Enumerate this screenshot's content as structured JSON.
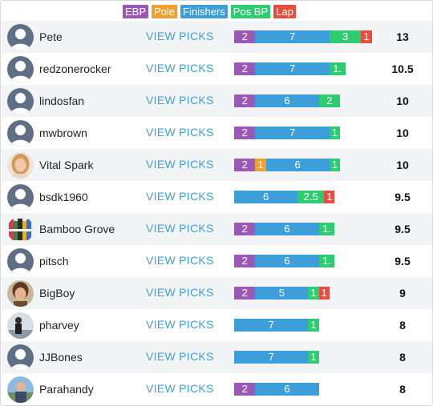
{
  "legend": [
    {
      "label": "EBP",
      "color": "#9b59b6"
    },
    {
      "label": "Pole",
      "color": "#f0a030"
    },
    {
      "label": "Finishers",
      "color": "#3d9ed9"
    },
    {
      "label": "Pos BP",
      "color": "#2ecc71"
    },
    {
      "label": "Lap",
      "color": "#e74c3c"
    }
  ],
  "view_picks_label": "VIEW PICKS",
  "rows": [
    {
      "user": "Pete",
      "avatar": "default-user-icon",
      "score": "13",
      "segments": [
        {
          "type": "ebp",
          "label": "2",
          "value": 2
        },
        {
          "type": "finishers",
          "label": "7",
          "value": 7
        },
        {
          "type": "posbp",
          "label": "3",
          "value": 3
        },
        {
          "type": "lap",
          "label": "1",
          "value": 1
        }
      ]
    },
    {
      "user": "redzonerocker",
      "avatar": "default-user-icon",
      "score": "10.5",
      "segments": [
        {
          "type": "ebp",
          "label": "2",
          "value": 2
        },
        {
          "type": "finishers",
          "label": "7",
          "value": 7
        },
        {
          "type": "posbp",
          "label": "1.",
          "value": 1.5
        }
      ]
    },
    {
      "user": "lindosfan",
      "avatar": "default-user-icon",
      "score": "10",
      "segments": [
        {
          "type": "ebp",
          "label": "2",
          "value": 2
        },
        {
          "type": "finishers",
          "label": "6",
          "value": 6
        },
        {
          "type": "posbp",
          "label": "2",
          "value": 2
        }
      ]
    },
    {
      "user": "mwbrown",
      "avatar": "default-user-icon",
      "score": "10",
      "segments": [
        {
          "type": "ebp",
          "label": "2",
          "value": 2
        },
        {
          "type": "finishers",
          "label": "7",
          "value": 7
        },
        {
          "type": "posbp",
          "label": "1",
          "value": 1
        }
      ]
    },
    {
      "user": "Vital Spark",
      "avatar": "woman-photo-avatar",
      "score": "10",
      "segments": [
        {
          "type": "ebp",
          "label": "2",
          "value": 2
        },
        {
          "type": "pole",
          "label": "1",
          "value": 1
        },
        {
          "type": "finishers",
          "label": "6",
          "value": 6
        },
        {
          "type": "posbp",
          "label": "1",
          "value": 1
        }
      ]
    },
    {
      "user": "bsdk1960",
      "avatar": "default-user-icon",
      "score": "9.5",
      "segments": [
        {
          "type": "finishers",
          "label": "6",
          "value": 6
        },
        {
          "type": "posbp",
          "label": "2.5",
          "value": 2.5
        },
        {
          "type": "lap",
          "label": "1",
          "value": 1
        }
      ]
    },
    {
      "user": "Bamboo Grove",
      "avatar": "colorful-pattern-avatar",
      "score": "9.5",
      "segments": [
        {
          "type": "ebp",
          "label": "2",
          "value": 2
        },
        {
          "type": "finishers",
          "label": "6",
          "value": 6
        },
        {
          "type": "posbp",
          "label": "1.",
          "value": 1.5
        }
      ]
    },
    {
      "user": "pitsch",
      "avatar": "default-user-icon",
      "score": "9.5",
      "segments": [
        {
          "type": "ebp",
          "label": "2",
          "value": 2
        },
        {
          "type": "finishers",
          "label": "6",
          "value": 6
        },
        {
          "type": "posbp",
          "label": "1.",
          "value": 1.5
        }
      ]
    },
    {
      "user": "BigBoy",
      "avatar": "man-photo-avatar",
      "score": "9",
      "segments": [
        {
          "type": "ebp",
          "label": "2",
          "value": 2
        },
        {
          "type": "finishers",
          "label": "5",
          "value": 5
        },
        {
          "type": "posbp",
          "label": "1",
          "value": 1
        },
        {
          "type": "lap",
          "label": "1",
          "value": 1
        }
      ]
    },
    {
      "user": "pharvey",
      "avatar": "dark-photo-avatar",
      "score": "8",
      "segments": [
        {
          "type": "finishers",
          "label": "7",
          "value": 7
        },
        {
          "type": "posbp",
          "label": "1",
          "value": 1
        }
      ]
    },
    {
      "user": "JJBones",
      "avatar": "default-user-icon",
      "score": "8",
      "segments": [
        {
          "type": "finishers",
          "label": "7",
          "value": 7
        },
        {
          "type": "posbp",
          "label": "1",
          "value": 1
        }
      ]
    },
    {
      "user": "Parahandy",
      "avatar": "outdoor-photo-avatar",
      "score": "8",
      "segments": [
        {
          "type": "ebp",
          "label": "2",
          "value": 2
        },
        {
          "type": "finishers",
          "label": "6",
          "value": 6
        }
      ]
    }
  ]
}
